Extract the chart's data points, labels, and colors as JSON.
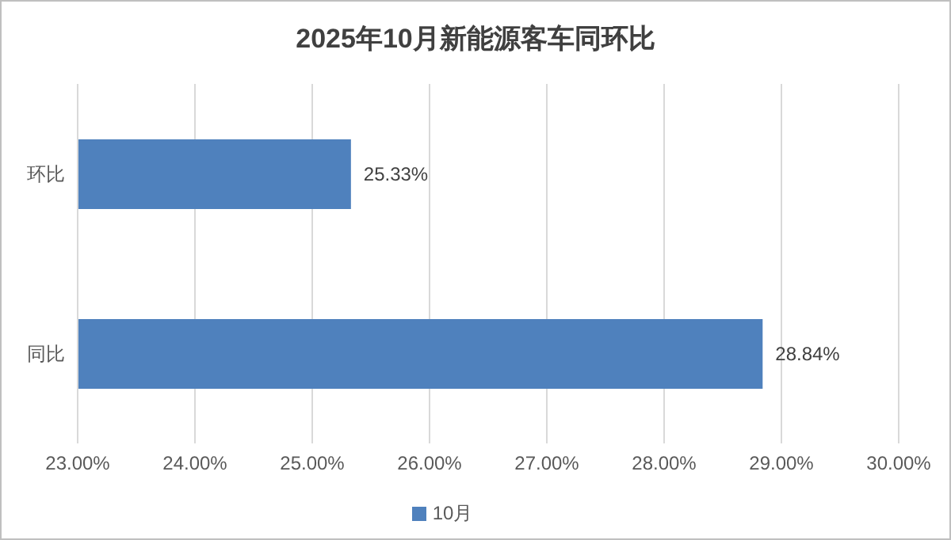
{
  "chart_data": {
    "type": "bar",
    "orientation": "horizontal",
    "title": "2025年10月新能源客车同环比",
    "categories": [
      "环比",
      "同比"
    ],
    "series": [
      {
        "name": "10月",
        "color": "#4f81bd",
        "values": [
          25.33,
          28.84
        ],
        "value_labels": [
          "25.33%",
          "28.84%"
        ]
      }
    ],
    "xlim": [
      23,
      30
    ],
    "xticks": [
      {
        "value": 23,
        "label": "23.00%"
      },
      {
        "value": 24,
        "label": "24.00%"
      },
      {
        "value": 25,
        "label": "25.00%"
      },
      {
        "value": 26,
        "label": "26.00%"
      },
      {
        "value": 27,
        "label": "27.00%"
      },
      {
        "value": 28,
        "label": "28.00%"
      },
      {
        "value": 29,
        "label": "29.00%"
      },
      {
        "value": 30,
        "label": "30.00%"
      }
    ],
    "grid": "x",
    "legend": "bottom"
  }
}
